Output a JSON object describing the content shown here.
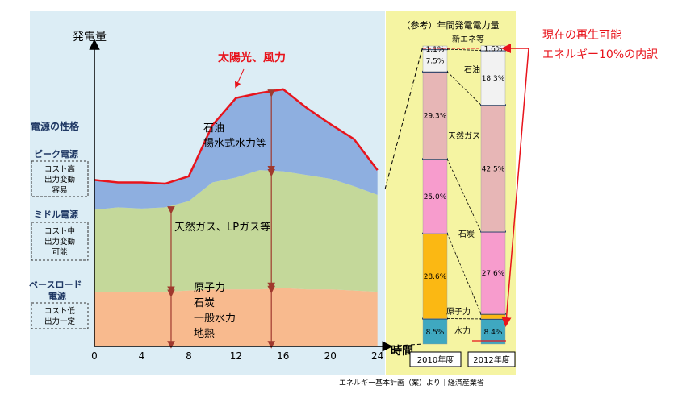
{
  "left_chart": {
    "y_axis_label": "発電量",
    "x_axis_label": "時間",
    "peak_annotation": "太陽光、風力",
    "section_heading": "電源の性格",
    "categories": [
      {
        "title": "ピーク電源",
        "desc": [
          "コスト高",
          "出力変動",
          "容易"
        ]
      },
      {
        "title": "ミドル電源",
        "desc": [
          "コスト中",
          "出力変動",
          "可能"
        ]
      },
      {
        "title": "ベースロード",
        "title2": "電源",
        "desc": [
          "コスト低",
          "出力一定"
        ]
      }
    ],
    "layer_labels": {
      "peak": [
        "石油",
        "揚水式水力等"
      ],
      "middle": [
        "天然ガス、LPガス等"
      ],
      "base": [
        "原子力",
        "石炭",
        "一般水力",
        "地熱"
      ]
    },
    "colors": {
      "panel_bg": "#dcedf5",
      "peak": "#8eafe0",
      "middle": "#c4d89a",
      "base": "#f8ba8e",
      "demand_line": "#e8141c",
      "arrow": "#a0392e"
    }
  },
  "right_chart": {
    "title": "（参考）年間発電電力量",
    "bg": "#f5f4a2",
    "bar_labels": [
      "2010年度",
      "2012年度"
    ],
    "source_labels": {
      "renewable": "新エネ等",
      "oil": "石油",
      "gas": "天然ガス",
      "coal": "石炭",
      "nuclear": "原子力",
      "hydro": "水力"
    },
    "colors": {
      "hydro": "#3fa8c0",
      "nuclear": "#fbb813",
      "coal": "#f79ccd",
      "gas": "#e7b6b6",
      "oil": "#f2f2f2",
      "renewable": "#f2f2f2",
      "divider": "#1f3864"
    }
  },
  "annotation": {
    "lines": [
      "現在の再生可能",
      "エネルギー10%の内訳"
    ],
    "color": "#e8141c"
  },
  "source_note": "エネルギー基本計画（案）より｜経済産業省",
  "chart_data": [
    {
      "type": "area",
      "x": [
        0,
        2,
        4,
        6,
        8,
        10,
        12,
        14,
        16,
        18,
        20,
        22,
        24
      ],
      "x_ticks": [
        0,
        4,
        8,
        12,
        16,
        20,
        24
      ],
      "xlabel": "時間",
      "ylabel": "発電量",
      "grid": false,
      "series": [
        {
          "name": "原子力、石炭、一般水力、地熱",
          "values": [
            2.2,
            2.2,
            2.2,
            2.2,
            2.25,
            2.3,
            2.3,
            2.3,
            2.35,
            2.3,
            2.3,
            2.25,
            2.2
          ]
        },
        {
          "name": "天然ガス、LPガス等",
          "values": [
            3.3,
            3.4,
            3.35,
            3.4,
            3.6,
            4.3,
            4.5,
            4.8,
            4.7,
            4.6,
            4.45,
            4.2,
            3.9
          ]
        },
        {
          "name": "石油 揚水式水力等",
          "values": [
            1.2,
            1.0,
            1.05,
            0.95,
            1.0,
            2.3,
            3.2,
            3.1,
            3.3,
            2.7,
            2.2,
            1.9,
            1.0
          ]
        },
        {
          "name": "太陽光、風力",
          "values": [
            6.7,
            6.6,
            6.6,
            6.55,
            6.85,
            8.9,
            10.0,
            10.2,
            10.35,
            9.6,
            8.95,
            8.35,
            7.1
          ]
        }
      ]
    },
    {
      "type": "bar",
      "title": "（参考）年間発電電力量",
      "categories": [
        "2010年度",
        "2012年度"
      ],
      "stacked": true,
      "series": [
        {
          "name": "水力",
          "values": [
            8.5,
            8.4
          ]
        },
        {
          "name": "原子力",
          "values": [
            28.6,
            1.7
          ]
        },
        {
          "name": "石炭",
          "values": [
            25.0,
            27.6
          ]
        },
        {
          "name": "天然ガス",
          "values": [
            29.3,
            42.5
          ]
        },
        {
          "name": "石油",
          "values": [
            7.5,
            18.3
          ]
        },
        {
          "name": "新エネ等",
          "values": [
            1.1,
            1.6
          ]
        }
      ],
      "value_labels": [
        [
          "8.5%",
          "28.6%",
          "25.0%",
          "29.3%",
          "7.5%",
          "1.1%"
        ],
        [
          "8.4%",
          "1.7%",
          "27.6%",
          "42.5%",
          "18.3%",
          "1.6%"
        ]
      ]
    }
  ]
}
